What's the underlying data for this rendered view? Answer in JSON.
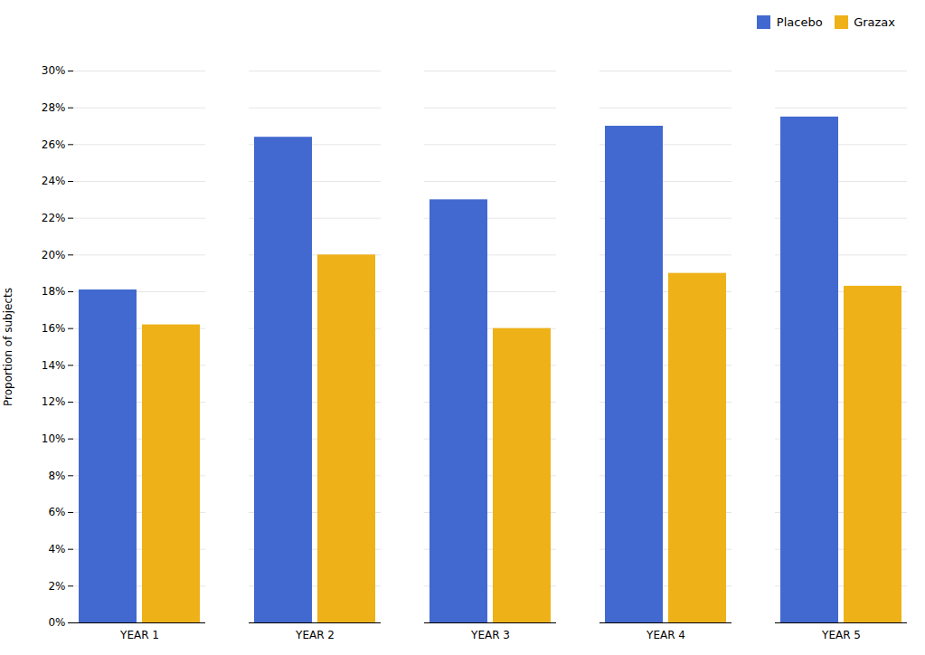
{
  "chart_data": {
    "type": "bar",
    "categories": [
      "YEAR 1",
      "YEAR 2",
      "YEAR 3",
      "YEAR 4",
      "YEAR 5"
    ],
    "series": [
      {
        "name": "Placebo",
        "values": [
          18.1,
          26.4,
          23.0,
          27.0,
          27.5
        ]
      },
      {
        "name": "Grazax",
        "values": [
          16.2,
          20.0,
          16.0,
          19.0,
          18.3
        ]
      }
    ],
    "ylabel": "Proportion of subjects",
    "ylim": [
      0,
      30
    ],
    "yticks": [
      {
        "value": 0,
        "label": "0%"
      },
      {
        "value": 2,
        "label": "2%"
      },
      {
        "value": 4,
        "label": "4%"
      },
      {
        "value": 6,
        "label": "6%"
      },
      {
        "value": 8,
        "label": "8%"
      },
      {
        "value": 10,
        "label": "10%"
      },
      {
        "value": 12,
        "label": "12%"
      },
      {
        "value": 14,
        "label": "14%"
      },
      {
        "value": 16,
        "label": "16%"
      },
      {
        "value": 18,
        "label": "18%"
      },
      {
        "value": 20,
        "label": "20%"
      },
      {
        "value": 22,
        "label": "22%"
      },
      {
        "value": 24,
        "label": "24%"
      },
      {
        "value": 26,
        "label": "26%"
      },
      {
        "value": 28,
        "label": "28%"
      },
      {
        "value": 30,
        "label": "30%"
      }
    ],
    "grid": true,
    "legend": "upper right"
  }
}
